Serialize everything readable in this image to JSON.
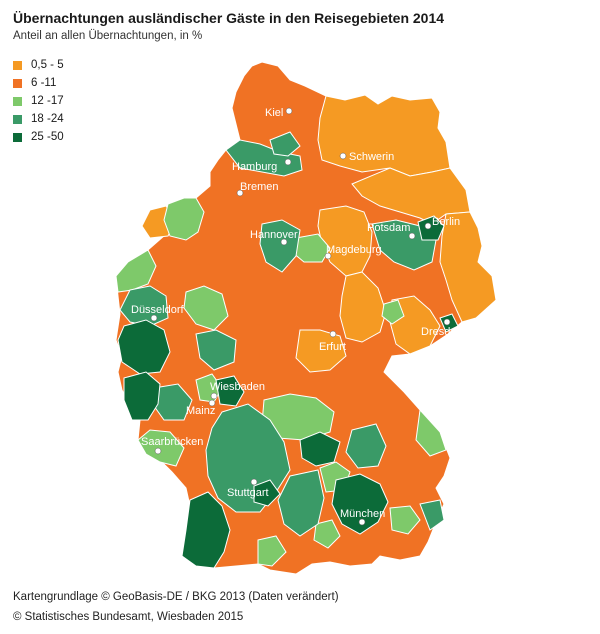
{
  "title": "Übernachtungen ausländischer Gäste in den Reisegebieten 2014",
  "subtitle": "Anteil an allen Übernachtungen, in %",
  "legend": [
    {
      "label": "0,5 -  5",
      "color": "#f59a23"
    },
    {
      "label": "6   -11",
      "color": "#f07224"
    },
    {
      "label": "12  -17",
      "color": "#7ec96a"
    },
    {
      "label": "18  -24",
      "color": "#3a9a67"
    },
    {
      "label": "25  -50",
      "color": "#0c6b39"
    }
  ],
  "cities": {
    "kiel": "Kiel",
    "schwerin": "Schwerin",
    "hamburg": "Hamburg",
    "bremen": "Bremen",
    "hannover": "Hannover",
    "potsdam": "Potsdam",
    "berlin": "Berlin",
    "magdeburg": "Magdeburg",
    "duesseldorf": "Düsseldorf",
    "dresden": "Dresden",
    "erfurt": "Erfurt",
    "wiesbaden": "Wiesbaden",
    "mainz": "Mainz",
    "saarbruecken": "Saarbrücken",
    "stuttgart": "Stuttgart",
    "muenchen": "München"
  },
  "footer": {
    "source": "Kartengrundlage © GeoBasis-DE / BKG 2013 (Daten verändert)",
    "copyright": "© Statistisches Bundesamt, Wiesbaden 2015"
  }
}
